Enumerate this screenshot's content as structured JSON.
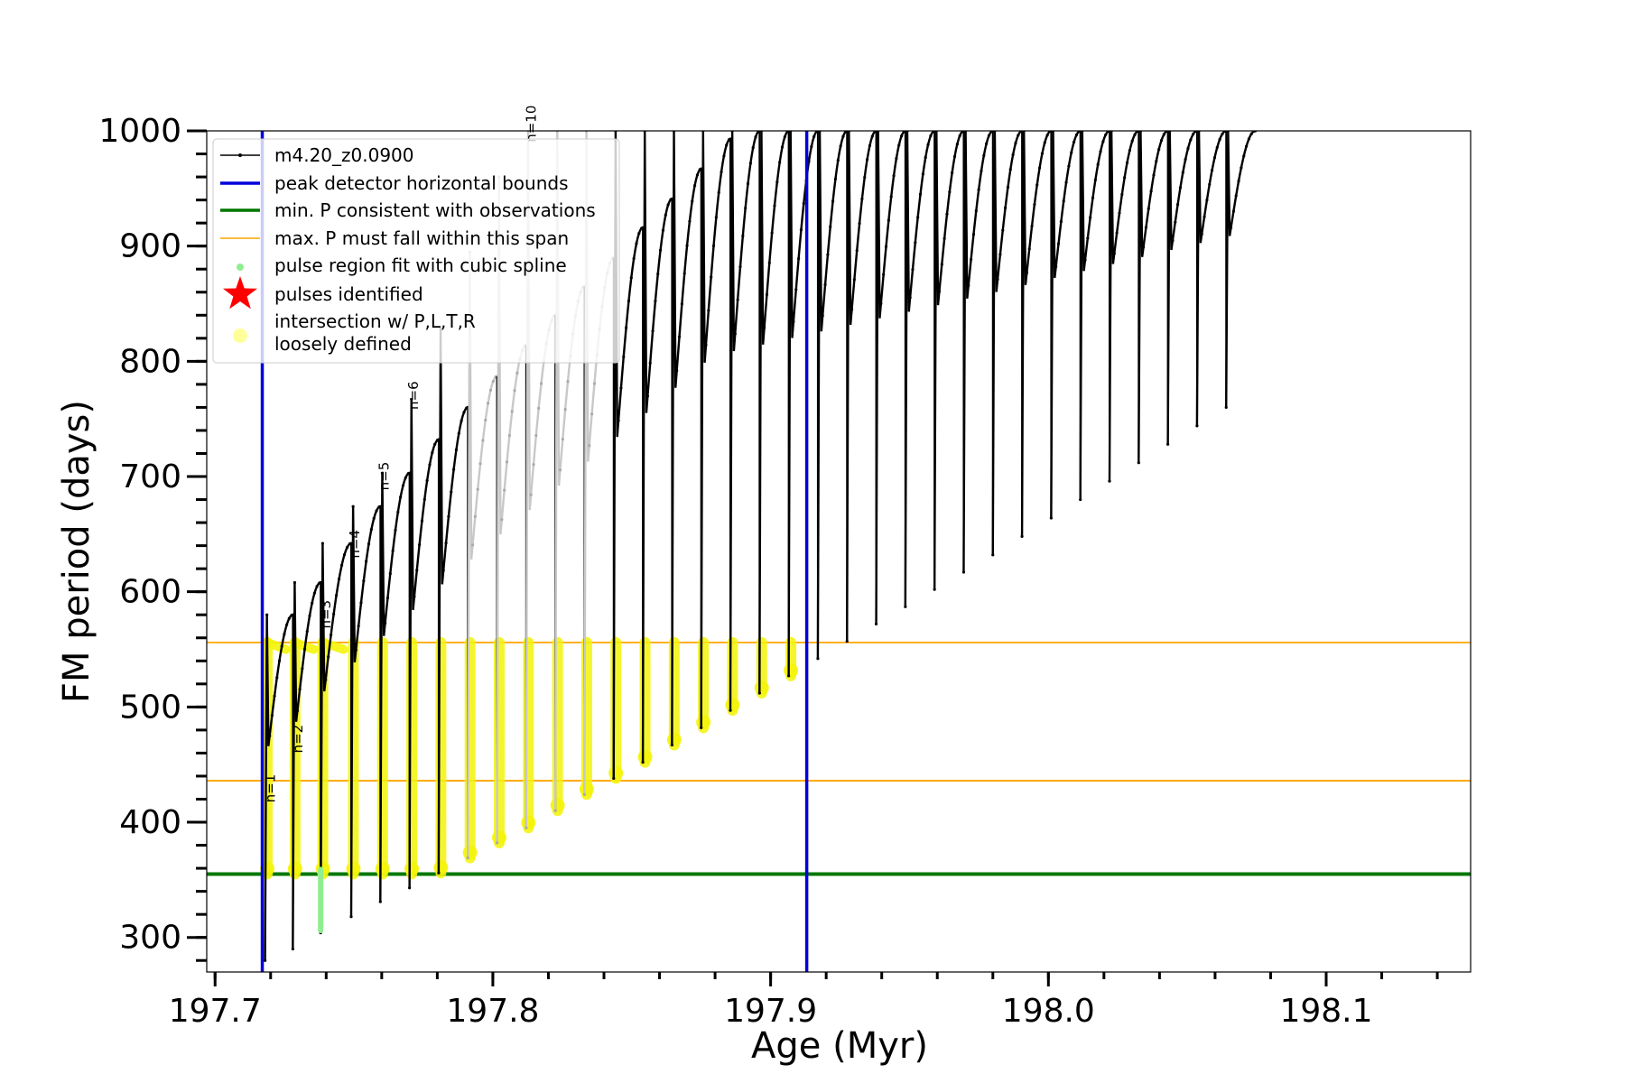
{
  "chart_data": {
    "type": "line",
    "xlabel": "Age (Myr)",
    "ylabel": "FM period (days)",
    "xlim": [
      197.697,
      198.152
    ],
    "ylim": [
      270,
      1000
    ],
    "x_ticks": [
      197.7,
      197.8,
      197.9,
      198.0,
      198.1
    ],
    "x_tick_labels": [
      "197.7",
      "197.8",
      "197.9",
      "198.0",
      "198.1"
    ],
    "x_minor_step": 0.02,
    "y_ticks": [
      300,
      400,
      500,
      600,
      700,
      800,
      900,
      1000
    ],
    "y_tick_labels": [
      "300",
      "400",
      "500",
      "600",
      "700",
      "800",
      "900",
      "1000"
    ],
    "y_minor_step": 20,
    "legend_position": "upper-left",
    "legend": [
      {
        "label": "m4.20_z0.0900",
        "style": "line-dot",
        "color": "#000000"
      },
      {
        "label": "peak detector horizontal bounds",
        "style": "line",
        "color": "#0000dd"
      },
      {
        "label": "min. P consistent with observations",
        "style": "line",
        "color": "#007700"
      },
      {
        "label": "max. P must fall within this span",
        "style": "thin-line",
        "color": "#ffa500"
      },
      {
        "label": "pulse region fit with cubic spline",
        "style": "dot",
        "color": "#90ee90"
      },
      {
        "label": "pulses identified",
        "style": "star",
        "color": "#ff0000"
      },
      {
        "label": "intersection w/ P,L,T,R",
        "label2": "loosely defined",
        "style": "big-dot",
        "color": "#ffff99"
      }
    ],
    "vertical_lines": [
      {
        "x": 197.717,
        "color": "#0000dd"
      },
      {
        "x": 197.913,
        "color": "#0000dd"
      }
    ],
    "horizontal_lines": [
      {
        "y": 355,
        "color": "#007700"
      },
      {
        "y": 436,
        "color": "#ffa500"
      },
      {
        "y": 556,
        "color": "#ffa500"
      }
    ],
    "series": [
      {
        "name": "m4.20_z0.0900",
        "color": "#000000",
        "pulses": [
          {
            "start": 197.718,
            "end": 197.728,
            "p0": 280,
            "peak": 580,
            "spike": 580
          },
          {
            "start": 197.728,
            "end": 197.738,
            "p0": 290,
            "peak": 608,
            "spike": 608
          },
          {
            "start": 197.738,
            "end": 197.749,
            "p0": 304,
            "peak": 642,
            "spike": 642
          },
          {
            "start": 197.749,
            "end": 197.7595,
            "p0": 318,
            "peak": 674,
            "spike": 674
          },
          {
            "start": 197.7595,
            "end": 197.77,
            "p0": 331,
            "peak": 703,
            "spike": 703
          },
          {
            "start": 197.77,
            "end": 197.7805,
            "p0": 343,
            "peak": 732,
            "spike": 767
          },
          {
            "start": 197.7805,
            "end": 197.791,
            "p0": 356,
            "peak": 760,
            "spike": 828
          },
          {
            "start": 197.791,
            "end": 197.8015,
            "p0": 369,
            "peak": 787,
            "spike": 895
          },
          {
            "start": 197.8015,
            "end": 197.812,
            "p0": 382,
            "peak": 814,
            "spike": 960
          },
          {
            "start": 197.812,
            "end": 197.8225,
            "p0": 395,
            "peak": 840,
            "spike": 1000
          },
          {
            "start": 197.8225,
            "end": 197.833,
            "p0": 410,
            "peak": 865,
            "spike": 1000
          },
          {
            "start": 197.833,
            "end": 197.8435,
            "p0": 424,
            "peak": 890,
            "spike": 1000
          },
          {
            "start": 197.8435,
            "end": 197.854,
            "p0": 438,
            "peak": 916,
            "spike": 1000
          },
          {
            "start": 197.854,
            "end": 197.8645,
            "p0": 452,
            "peak": 941,
            "spike": 1000
          },
          {
            "start": 197.8645,
            "end": 197.875,
            "p0": 467,
            "peak": 967,
            "spike": 1000
          },
          {
            "start": 197.875,
            "end": 197.8855,
            "p0": 482,
            "peak": 993,
            "spike": 1000
          },
          {
            "start": 197.8855,
            "end": 197.896,
            "p0": 497,
            "peak": 1000,
            "spike": 1000
          },
          {
            "start": 197.896,
            "end": 197.9065,
            "p0": 512,
            "peak": 1000,
            "spike": 1000
          },
          {
            "start": 197.9065,
            "end": 197.917,
            "p0": 527,
            "peak": 1000,
            "spike": 1000
          },
          {
            "start": 197.917,
            "end": 197.9275,
            "p0": 542,
            "peak": 1000,
            "spike": 1000
          },
          {
            "start": 197.9275,
            "end": 197.938,
            "p0": 557,
            "peak": 1000,
            "spike": 1000
          },
          {
            "start": 197.938,
            "end": 197.9485,
            "p0": 572,
            "peak": 1000,
            "spike": 1000
          },
          {
            "start": 197.9485,
            "end": 197.959,
            "p0": 587,
            "peak": 1000,
            "spike": 1000
          },
          {
            "start": 197.959,
            "end": 197.9695,
            "p0": 602,
            "peak": 1000,
            "spike": 1000
          },
          {
            "start": 197.9695,
            "end": 197.98,
            "p0": 617,
            "peak": 1000,
            "spike": 1000
          },
          {
            "start": 197.98,
            "end": 197.9905,
            "p0": 632,
            "peak": 1000,
            "spike": 1000
          },
          {
            "start": 197.9905,
            "end": 198.001,
            "p0": 648,
            "peak": 1000,
            "spike": 1000
          },
          {
            "start": 198.001,
            "end": 198.0115,
            "p0": 664,
            "peak": 1000,
            "spike": 1000
          },
          {
            "start": 198.0115,
            "end": 198.022,
            "p0": 680,
            "peak": 1000,
            "spike": 1000
          },
          {
            "start": 198.022,
            "end": 198.0325,
            "p0": 696,
            "peak": 1000,
            "spike": 1000
          },
          {
            "start": 198.0325,
            "end": 198.043,
            "p0": 712,
            "peak": 1000,
            "spike": 1000
          },
          {
            "start": 198.043,
            "end": 198.0535,
            "p0": 728,
            "peak": 1000,
            "spike": 1000
          },
          {
            "start": 198.0535,
            "end": 198.064,
            "p0": 744,
            "peak": 1000,
            "spike": 1000
          },
          {
            "start": 198.064,
            "end": 198.0745,
            "p0": 760,
            "peak": 1000,
            "spike": 1000
          }
        ]
      }
    ],
    "pulse_labels": [
      {
        "text": "n=1",
        "x": 197.7215,
        "y": 417
      },
      {
        "text": "n=2",
        "x": 197.7315,
        "y": 460
      },
      {
        "text": "n=3",
        "x": 197.7415,
        "y": 568
      },
      {
        "text": "n=4",
        "x": 197.752,
        "y": 629
      },
      {
        "text": "n=5",
        "x": 197.7625,
        "y": 688
      },
      {
        "text": "n=6",
        "x": 197.773,
        "y": 758
      },
      {
        "text": "n=10",
        "x": 197.8155,
        "y": 990
      }
    ]
  }
}
